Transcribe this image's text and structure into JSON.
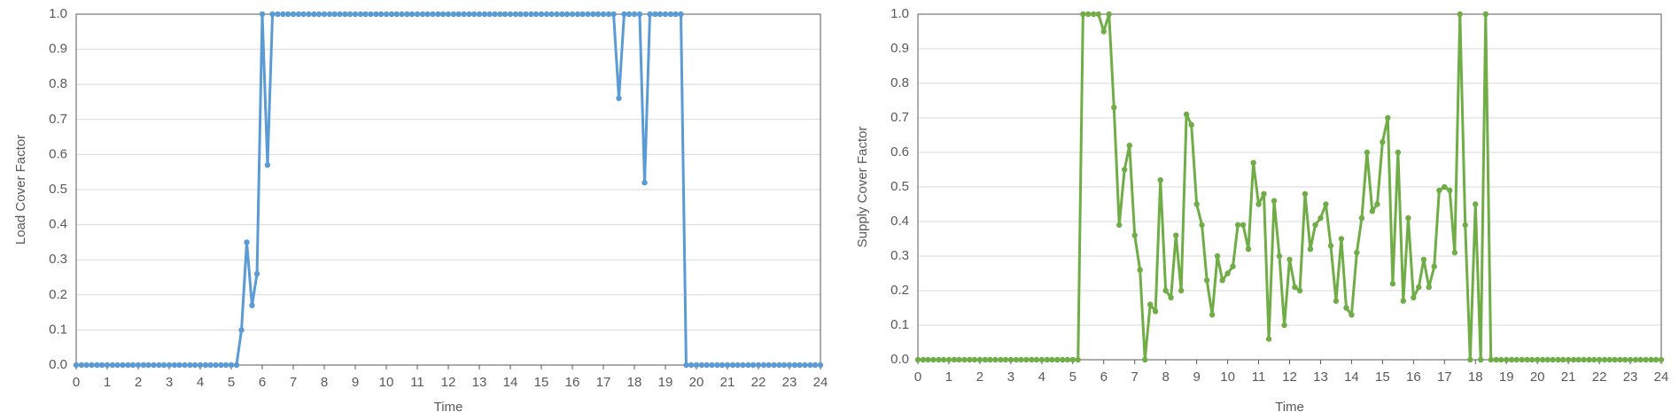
{
  "chart_data": [
    {
      "type": "line",
      "ylabel": "Load Cover Factor",
      "xlabel": "Time",
      "x": [
        0,
        0.17,
        0.33,
        0.5,
        0.67,
        0.83,
        1,
        1.17,
        1.33,
        1.5,
        1.67,
        1.83,
        2,
        2.17,
        2.33,
        2.5,
        2.67,
        2.83,
        3,
        3.17,
        3.33,
        3.5,
        3.67,
        3.83,
        4,
        4.17,
        4.33,
        4.5,
        4.67,
        4.83,
        5,
        5.17,
        5.33,
        5.5,
        5.67,
        5.83,
        6,
        6.17,
        6.33,
        6.5,
        6.67,
        6.83,
        7,
        7.17,
        7.33,
        7.5,
        7.67,
        7.83,
        8,
        8.17,
        8.33,
        8.5,
        8.67,
        8.83,
        9,
        9.17,
        9.33,
        9.5,
        9.67,
        9.83,
        10,
        10.17,
        10.33,
        10.5,
        10.67,
        10.83,
        11,
        11.17,
        11.33,
        11.5,
        11.67,
        11.83,
        12,
        12.17,
        12.33,
        12.5,
        12.67,
        12.83,
        13,
        13.17,
        13.33,
        13.5,
        13.67,
        13.83,
        14,
        14.17,
        14.33,
        14.5,
        14.67,
        14.83,
        15,
        15.17,
        15.33,
        15.5,
        15.67,
        15.83,
        16,
        16.17,
        16.33,
        16.5,
        16.67,
        16.83,
        17,
        17.17,
        17.33,
        17.5,
        17.67,
        17.83,
        18,
        18.17,
        18.33,
        18.5,
        18.67,
        18.83,
        19,
        19.17,
        19.33,
        19.5,
        19.67,
        19.83,
        20,
        20.17,
        20.33,
        20.5,
        20.67,
        20.83,
        21,
        21.17,
        21.33,
        21.5,
        21.67,
        21.83,
        22,
        22.17,
        22.33,
        22.5,
        22.67,
        22.83,
        23,
        23.17,
        23.33,
        23.5,
        23.67,
        23.83,
        24
      ],
      "series": [
        {
          "color": "#5b9bd5",
          "values": [
            0,
            0,
            0,
            0,
            0,
            0,
            0,
            0,
            0,
            0,
            0,
            0,
            0,
            0,
            0,
            0,
            0,
            0,
            0,
            0,
            0,
            0,
            0,
            0,
            0,
            0,
            0,
            0,
            0,
            0,
            0,
            0,
            0.1,
            0.35,
            0.17,
            0.26,
            1,
            0.57,
            1,
            1,
            1,
            1,
            1,
            1,
            1,
            1,
            1,
            1,
            1,
            1,
            1,
            1,
            1,
            1,
            1,
            1,
            1,
            1,
            1,
            1,
            1,
            1,
            1,
            1,
            1,
            1,
            1,
            1,
            1,
            1,
            1,
            1,
            1,
            1,
            1,
            1,
            1,
            1,
            1,
            1,
            1,
            1,
            1,
            1,
            1,
            1,
            1,
            1,
            1,
            1,
            1,
            1,
            1,
            1,
            1,
            1,
            1,
            1,
            1,
            1,
            1,
            1,
            1,
            1,
            1,
            0.76,
            1,
            1,
            1,
            1,
            0.52,
            1,
            1,
            1,
            1,
            1,
            1,
            1,
            0,
            0,
            0,
            0,
            0,
            0,
            0,
            0,
            0,
            0,
            0,
            0,
            0,
            0,
            0,
            0,
            0,
            0,
            0,
            0,
            0,
            0,
            0,
            0,
            0,
            0,
            0
          ]
        }
      ],
      "xlim": [
        0,
        24
      ],
      "xticks": [
        0,
        1,
        2,
        3,
        4,
        5,
        6,
        7,
        8,
        9,
        10,
        11,
        12,
        13,
        14,
        15,
        16,
        17,
        18,
        19,
        20,
        21,
        22,
        23,
        24
      ],
      "ylim": [
        0,
        1
      ],
      "yticks": [
        {
          "value": 0,
          "label": "0.0"
        },
        0.1,
        0.2,
        0.3,
        0.4,
        0.5,
        0.6,
        0.7,
        0.8,
        0.9,
        {
          "value": 1,
          "label": "1.0"
        }
      ],
      "grid": true
    },
    {
      "type": "line",
      "ylabel": "Supply Cover Factor",
      "xlabel": "Time",
      "x": [
        0,
        0.17,
        0.33,
        0.5,
        0.67,
        0.83,
        1,
        1.17,
        1.33,
        1.5,
        1.67,
        1.83,
        2,
        2.17,
        2.33,
        2.5,
        2.67,
        2.83,
        3,
        3.17,
        3.33,
        3.5,
        3.67,
        3.83,
        4,
        4.17,
        4.33,
        4.5,
        4.67,
        4.83,
        5,
        5.17,
        5.33,
        5.5,
        5.67,
        5.83,
        6,
        6.17,
        6.33,
        6.5,
        6.67,
        6.83,
        7,
        7.17,
        7.33,
        7.5,
        7.67,
        7.83,
        8,
        8.17,
        8.33,
        8.5,
        8.67,
        8.83,
        9,
        9.17,
        9.33,
        9.5,
        9.67,
        9.83,
        10,
        10.17,
        10.33,
        10.5,
        10.67,
        10.83,
        11,
        11.17,
        11.33,
        11.5,
        11.67,
        11.83,
        12,
        12.17,
        12.33,
        12.5,
        12.67,
        12.83,
        13,
        13.17,
        13.33,
        13.5,
        13.67,
        13.83,
        14,
        14.17,
        14.33,
        14.5,
        14.67,
        14.83,
        15,
        15.17,
        15.33,
        15.5,
        15.67,
        15.83,
        16,
        16.17,
        16.33,
        16.5,
        16.67,
        16.83,
        17,
        17.17,
        17.33,
        17.5,
        17.67,
        17.83,
        18,
        18.17,
        18.33,
        18.5,
        18.67,
        18.83,
        19,
        19.17,
        19.33,
        19.5,
        19.67,
        19.83,
        20,
        20.17,
        20.33,
        20.5,
        20.67,
        20.83,
        21,
        21.17,
        21.33,
        21.5,
        21.67,
        21.83,
        22,
        22.17,
        22.33,
        22.5,
        22.67,
        22.83,
        23,
        23.17,
        23.33,
        23.5,
        23.67,
        23.83,
        24
      ],
      "series": [
        {
          "color": "#70ad47",
          "values": [
            0,
            0,
            0,
            0,
            0,
            0,
            0,
            0,
            0,
            0,
            0,
            0,
            0,
            0,
            0,
            0,
            0,
            0,
            0,
            0,
            0,
            0,
            0,
            0,
            0,
            0,
            0,
            0,
            0,
            0,
            0,
            0,
            1,
            1,
            1,
            1,
            0.95,
            1,
            0.73,
            0.39,
            0.55,
            0.62,
            0.36,
            0.26,
            0,
            0.16,
            0.14,
            0.52,
            0.2,
            0.18,
            0.36,
            0.2,
            0.71,
            0.68,
            0.45,
            0.39,
            0.23,
            0.13,
            0.3,
            0.23,
            0.25,
            0.27,
            0.39,
            0.39,
            0.32,
            0.57,
            0.45,
            0.48,
            0.06,
            0.46,
            0.3,
            0.1,
            0.29,
            0.21,
            0.2,
            0.48,
            0.32,
            0.39,
            0.41,
            0.45,
            0.33,
            0.17,
            0.35,
            0.15,
            0.13,
            0.31,
            0.41,
            0.6,
            0.43,
            0.45,
            0.63,
            0.7,
            0.22,
            0.6,
            0.17,
            0.41,
            0.18,
            0.21,
            0.29,
            0.21,
            0.27,
            0.49,
            0.5,
            0.49,
            0.31,
            1,
            0.39,
            0,
            0.45,
            0,
            1,
            0,
            0,
            0,
            0,
            0,
            0,
            0,
            0,
            0,
            0,
            0,
            0,
            0,
            0,
            0,
            0,
            0,
            0,
            0,
            0,
            0,
            0,
            0,
            0,
            0,
            0,
            0,
            0,
            0,
            0,
            0,
            0,
            0,
            0
          ]
        }
      ],
      "xlim": [
        0,
        24
      ],
      "xticks": [
        0,
        1,
        2,
        3,
        4,
        5,
        6,
        7,
        8,
        9,
        10,
        11,
        12,
        13,
        14,
        15,
        16,
        17,
        18,
        19,
        20,
        21,
        22,
        23,
        24
      ],
      "ylim": [
        0,
        1
      ],
      "yticks": [
        {
          "value": 0,
          "label": "0.0"
        },
        0.1,
        0.2,
        0.3,
        0.4,
        0.5,
        0.6,
        0.7,
        0.8,
        0.9,
        {
          "value": 1,
          "label": "1.0"
        }
      ],
      "grid": true
    }
  ]
}
